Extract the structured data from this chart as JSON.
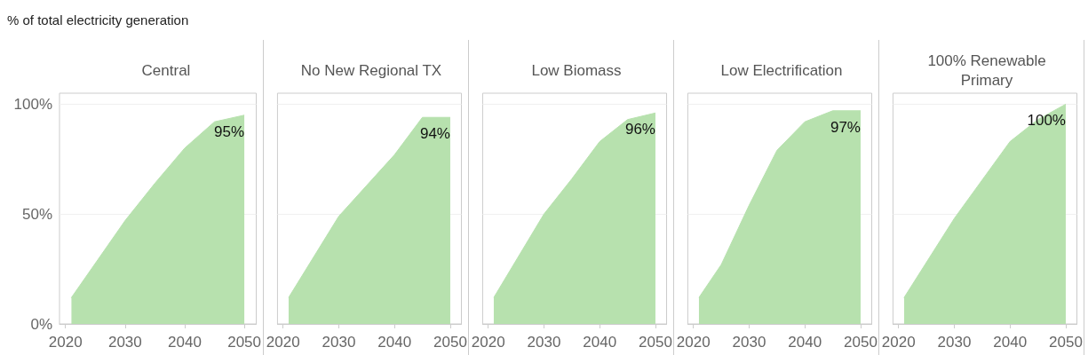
{
  "chart_data": [
    {
      "type": "area",
      "title": "Central",
      "ylabel": "% of total electricity generation",
      "x": [
        2021,
        2030,
        2035,
        2040,
        2045,
        2050
      ],
      "values": [
        12,
        47,
        64,
        80,
        92,
        95
      ],
      "value_labels": [
        null,
        null,
        null,
        null,
        null,
        "95%"
      ],
      "color": "#b7e1ae",
      "xlim": [
        2019,
        2052
      ],
      "xticks": [
        2020,
        2030,
        2040,
        2050
      ],
      "ylim": [
        0,
        105
      ],
      "yticks": [
        {
          "value": 0,
          "label": "0%"
        },
        {
          "value": 50,
          "label": "50%"
        },
        {
          "value": 100,
          "label": "100%"
        }
      ],
      "grid": "y"
    },
    {
      "type": "area",
      "title": "No New Regional TX",
      "x": [
        2021,
        2030,
        2040,
        2045,
        2050
      ],
      "values": [
        12,
        49,
        77,
        94,
        94
      ],
      "value_labels": [
        null,
        null,
        null,
        null,
        "94%"
      ],
      "color": "#b7e1ae",
      "xlim": [
        2019,
        2052
      ],
      "xticks": [
        2020,
        2030,
        2040,
        2050
      ],
      "ylim": [
        0,
        105
      ],
      "yticks": [
        0,
        50,
        100
      ],
      "grid": "y",
      "tick_labels": "x"
    },
    {
      "type": "area",
      "title": "Low Biomass",
      "x": [
        2021,
        2030,
        2035,
        2040,
        2045,
        2050
      ],
      "values": [
        12,
        50,
        66,
        83,
        93,
        96
      ],
      "value_labels": [
        null,
        null,
        null,
        null,
        null,
        "96%"
      ],
      "color": "#b7e1ae",
      "xlim": [
        2019,
        2052
      ],
      "xticks": [
        2020,
        2030,
        2040,
        2050
      ],
      "ylim": [
        0,
        105
      ],
      "yticks": [
        0,
        50,
        100
      ],
      "grid": "y",
      "tick_labels": "x"
    },
    {
      "type": "area",
      "title": "Low Electrification",
      "x": [
        2021,
        2025,
        2030,
        2035,
        2040,
        2045,
        2050
      ],
      "values": [
        12,
        27,
        54,
        79,
        92,
        97,
        97
      ],
      "value_labels": [
        null,
        null,
        null,
        null,
        null,
        null,
        "97%"
      ],
      "color": "#b7e1ae",
      "xlim": [
        2019,
        2052
      ],
      "xticks": [
        2020,
        2030,
        2040,
        2050
      ],
      "ylim": [
        0,
        105
      ],
      "yticks": [
        0,
        50,
        100
      ],
      "grid": "y",
      "tick_labels": "x"
    },
    {
      "type": "area",
      "title": "100% Renewable\nPrimary",
      "x": [
        2021,
        2030,
        2040,
        2045,
        2050
      ],
      "values": [
        12,
        48,
        83,
        93,
        100
      ],
      "value_labels": [
        null,
        null,
        null,
        null,
        "100%"
      ],
      "color": "#b7e1ae",
      "xlim": [
        2019,
        2052
      ],
      "xticks": [
        2020,
        2030,
        2040,
        2050
      ],
      "ylim": [
        0,
        105
      ],
      "yticks": [
        0,
        50,
        100
      ],
      "grid": "y",
      "tick_labels": "x"
    }
  ]
}
